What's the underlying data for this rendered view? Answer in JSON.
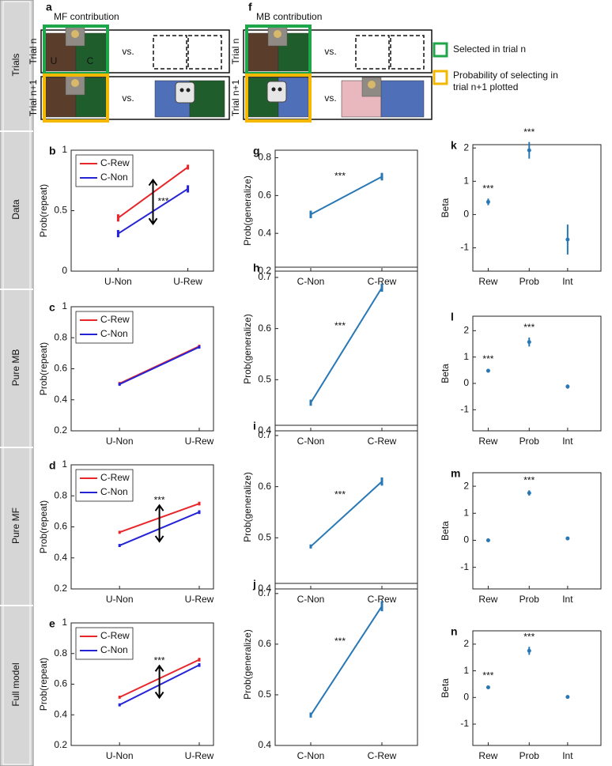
{
  "row_labels": [
    "Trials",
    "Data",
    "Pure MB",
    "Pure MF",
    "Full model"
  ],
  "diagram": {
    "panels": [
      {
        "letter": "a",
        "title": "MF contribution",
        "trial_labels": [
          "Trial n",
          "Trial n+1"
        ],
        "box_letters": [
          "U",
          "C"
        ],
        "vs": "vs."
      },
      {
        "letter": "f",
        "title": "MB contribution",
        "trial_labels": [
          "Trial n",
          "Trial n+1"
        ],
        "vs": "vs."
      }
    ],
    "legend": [
      {
        "text": "Selected in trial n",
        "color": "#1fa64a"
      },
      {
        "lines": [
          "Probability of selecting in",
          "trial n+1 plotted"
        ],
        "color": "#f5b800"
      }
    ]
  },
  "chart_data": [
    {
      "type": "line",
      "letter": "b",
      "ylabel": "Prob(repeat)",
      "categories": [
        "U-Non",
        "U-Rew"
      ],
      "ylim": [
        0,
        1
      ],
      "yticks": [
        0,
        0.5,
        1
      ],
      "series": [
        {
          "name": "C-Rew",
          "color": "#e8262a",
          "values": [
            0.44,
            0.86
          ],
          "errors": [
            0.03,
            0.02
          ]
        },
        {
          "name": "C-Non",
          "color": "#2424d6",
          "values": [
            0.31,
            0.68
          ],
          "errors": [
            0.03,
            0.03
          ]
        }
      ],
      "annotation": "***",
      "arrow": true,
      "legend": "upper left"
    },
    {
      "type": "line",
      "letter": "g",
      "ylabel": "Prob(generalize)",
      "categories": [
        "C-Non",
        "C-Rew"
      ],
      "ylim": [
        0.2,
        0.84
      ],
      "yticks": [
        0.2,
        0.4,
        0.6,
        0.8
      ],
      "series": [
        {
          "color": "#2878b5",
          "values": [
            0.5,
            0.7
          ],
          "errors": [
            0.02,
            0.02
          ]
        }
      ],
      "annotation": "***"
    },
    {
      "type": "dot",
      "letter": "k",
      "ylabel": "Beta",
      "categories": [
        "Rew",
        "Prob",
        "Int"
      ],
      "ylim": [
        -1.7,
        2.1
      ],
      "yticks": [
        -1,
        0,
        1,
        2
      ],
      "color": "#2878b5",
      "values": [
        0.38,
        1.93,
        -0.75
      ],
      "errors": [
        0.1,
        0.25,
        0.45
      ],
      "annotations": [
        "***",
        "***",
        null
      ]
    },
    {
      "type": "line",
      "letter": "c",
      "ylabel": "Prob(repeat)",
      "categories": [
        "U-Non",
        "U-Rew"
      ],
      "ylim": [
        0.2,
        1
      ],
      "yticks": [
        0.2,
        0.4,
        0.6,
        0.8,
        1
      ],
      "series": [
        {
          "name": "C-Rew",
          "color": "#e8262a",
          "values": [
            0.505,
            0.745
          ],
          "errors": [
            0.01,
            0.01
          ]
        },
        {
          "name": "C-Non",
          "color": "#2424d6",
          "values": [
            0.5,
            0.74
          ],
          "errors": [
            0.01,
            0.01
          ]
        }
      ],
      "legend": "upper left"
    },
    {
      "type": "line",
      "letter": "h",
      "ylabel": "Prob(generalize)",
      "categories": [
        "C-Non",
        "C-Rew"
      ],
      "ylim": [
        0.4,
        0.72
      ],
      "yticks": [
        0.4,
        0.5,
        0.6,
        0.7
      ],
      "series": [
        {
          "color": "#2878b5",
          "values": [
            0.455,
            0.68
          ],
          "errors": [
            0.006,
            0.008
          ]
        }
      ],
      "annotation": "***"
    },
    {
      "type": "dot",
      "letter": "l",
      "ylabel": "Beta",
      "categories": [
        "Rew",
        "Prob",
        "Int"
      ],
      "ylim": [
        -1.8,
        2.55
      ],
      "yticks": [
        -1,
        0,
        1,
        2
      ],
      "color": "#2878b5",
      "values": [
        0.48,
        1.57,
        -0.12
      ],
      "errors": [
        0.07,
        0.17,
        0.08
      ],
      "annotations": [
        "***",
        "***",
        null
      ]
    },
    {
      "type": "line",
      "letter": "d",
      "ylabel": "Prob(repeat)",
      "categories": [
        "U-Non",
        "U-Rew"
      ],
      "ylim": [
        0.2,
        1
      ],
      "yticks": [
        0.2,
        0.4,
        0.6,
        0.8,
        1
      ],
      "series": [
        {
          "name": "C-Rew",
          "color": "#e8262a",
          "values": [
            0.565,
            0.75
          ],
          "errors": [
            0.01,
            0.012
          ]
        },
        {
          "name": "C-Non",
          "color": "#2424d6",
          "values": [
            0.48,
            0.695
          ],
          "errors": [
            0.01,
            0.012
          ]
        }
      ],
      "annotation": "***",
      "arrow": true,
      "legend": "upper left"
    },
    {
      "type": "line",
      "letter": "i",
      "ylabel": "Prob(generalize)",
      "categories": [
        "C-Non",
        "C-Rew"
      ],
      "ylim": [
        0.4,
        0.72
      ],
      "yticks": [
        0.4,
        0.5,
        0.6,
        0.7
      ],
      "series": [
        {
          "color": "#2878b5",
          "values": [
            0.483,
            0.61
          ],
          "errors": [
            0.004,
            0.008
          ]
        }
      ],
      "annotation": "***"
    },
    {
      "type": "dot",
      "letter": "m",
      "ylabel": "Beta",
      "categories": [
        "Rew",
        "Prob",
        "Int"
      ],
      "ylim": [
        -1.8,
        2.5
      ],
      "yticks": [
        -1,
        0,
        1,
        2
      ],
      "color": "#2878b5",
      "values": [
        0,
        1.75,
        0.07
      ],
      "errors": [
        0.02,
        0.1,
        0.06
      ],
      "annotations": [
        null,
        "***",
        null
      ]
    },
    {
      "type": "line",
      "letter": "e",
      "ylabel": "Prob(repeat)",
      "categories": [
        "U-Non",
        "U-Rew"
      ],
      "ylim": [
        0.2,
        1
      ],
      "yticks": [
        0.2,
        0.4,
        0.6,
        0.8,
        1
      ],
      "series": [
        {
          "name": "C-Rew",
          "color": "#e8262a",
          "values": [
            0.515,
            0.76
          ],
          "errors": [
            0.01,
            0.012
          ]
        },
        {
          "name": "C-Non",
          "color": "#2424d6",
          "values": [
            0.465,
            0.725
          ],
          "errors": [
            0.01,
            0.012
          ]
        }
      ],
      "annotation": "***",
      "arrow": true,
      "legend": "upper left"
    },
    {
      "type": "line",
      "letter": "j",
      "ylabel": "Prob(generalize)",
      "categories": [
        "C-Non",
        "C-Rew"
      ],
      "ylim": [
        0.4,
        0.72
      ],
      "yticks": [
        0.4,
        0.5,
        0.6,
        0.7
      ],
      "series": [
        {
          "color": "#2878b5",
          "values": [
            0.46,
            0.675
          ],
          "errors": [
            0.005,
            0.01
          ]
        }
      ],
      "annotation": "***"
    },
    {
      "type": "dot",
      "letter": "n",
      "ylabel": "Beta",
      "categories": [
        "Rew",
        "Prob",
        "Int"
      ],
      "ylim": [
        -1.8,
        2.5
      ],
      "yticks": [
        -1,
        0,
        1,
        2
      ],
      "color": "#2878b5",
      "values": [
        0.38,
        1.75,
        0.02
      ],
      "errors": [
        0.06,
        0.15,
        0.06
      ],
      "annotations": [
        "***",
        "***",
        null
      ]
    }
  ]
}
